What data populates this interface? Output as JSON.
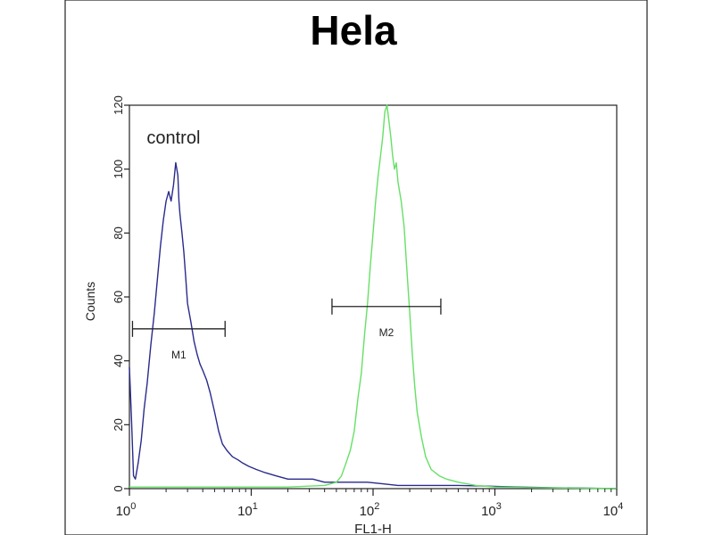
{
  "chart_data": {
    "type": "line",
    "title": "Hela",
    "xlabel": "FL1-H",
    "ylabel": "Counts",
    "x_scale": "log",
    "xlim": [
      1,
      10000
    ],
    "ylim": [
      0,
      120
    ],
    "y_ticks": [
      0,
      20,
      40,
      60,
      80,
      100,
      120
    ],
    "x_ticks": [
      {
        "base": "10",
        "exp": "0"
      },
      {
        "base": "10",
        "exp": "1"
      },
      {
        "base": "10",
        "exp": "2"
      },
      {
        "base": "10",
        "exp": "3"
      },
      {
        "base": "10",
        "exp": "4"
      }
    ],
    "grid": false,
    "annotations": [
      {
        "id": "control",
        "text": "control",
        "x": 2.3,
        "y": 108
      }
    ],
    "markers": [
      {
        "label": "M1",
        "x_start": 1.06,
        "x_end": 6.1,
        "y": 50
      },
      {
        "label": "M2",
        "x_start": 46,
        "x_end": 360,
        "y": 57
      }
    ],
    "series": [
      {
        "color": "#2a2a8c",
        "x": [
          1.0,
          1.04,
          1.08,
          1.12,
          1.18,
          1.25,
          1.32,
          1.4,
          1.5,
          1.6,
          1.7,
          1.8,
          1.9,
          2.0,
          2.1,
          2.2,
          2.3,
          2.4,
          2.5,
          2.55,
          2.6,
          2.7,
          2.8,
          2.9,
          3.0,
          3.2,
          3.4,
          3.6,
          3.8,
          4.0,
          4.3,
          4.6,
          5.0,
          5.4,
          5.8,
          6.3,
          7.0,
          7.8,
          8.5,
          9.5,
          11,
          13,
          16,
          20,
          25,
          32,
          40,
          55,
          70,
          90,
          120,
          160,
          220,
          300,
          500,
          800,
          1500,
          3000,
          10000
        ],
        "y": [
          38,
          22,
          4,
          3,
          8,
          15,
          25,
          33,
          45,
          55,
          66,
          76,
          84,
          90,
          93,
          90,
          95,
          102,
          98,
          90,
          86,
          80,
          74,
          66,
          58,
          52,
          46,
          42,
          39,
          37,
          34,
          30,
          24,
          18,
          14,
          12,
          10,
          9,
          8,
          7,
          6,
          5,
          4,
          3,
          3,
          3,
          2,
          2,
          2,
          2,
          1.5,
          1,
          1,
          1,
          1,
          0.8,
          0.5,
          0.3,
          0
        ]
      },
      {
        "color": "#66e066",
        "x": [
          1.0,
          5,
          10,
          20,
          40,
          50,
          55,
          60,
          65,
          70,
          75,
          80,
          85,
          90,
          95,
          100,
          105,
          110,
          115,
          120,
          125,
          130,
          135,
          140,
          145,
          150,
          155,
          160,
          170,
          180,
          190,
          200,
          210,
          220,
          230,
          250,
          270,
          300,
          350,
          400,
          500,
          700,
          1000,
          2000,
          10000
        ],
        "y": [
          0.5,
          0.5,
          0.5,
          0.5,
          1,
          2,
          4,
          8,
          12,
          18,
          28,
          36,
          48,
          58,
          70,
          80,
          90,
          98,
          104,
          110,
          118,
          120,
          115,
          110,
          104,
          100,
          102,
          96,
          90,
          82,
          68,
          55,
          42,
          32,
          24,
          16,
          10,
          6,
          4,
          3,
          2,
          1,
          0.5,
          0.3,
          0
        ]
      }
    ]
  }
}
